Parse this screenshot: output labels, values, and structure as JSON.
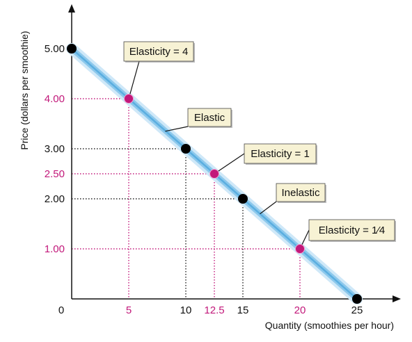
{
  "chart_data": {
    "type": "line",
    "xlabel": "Quantity (smoothies per hour)",
    "ylabel": "Price (dollars per smoothie)",
    "xlim": [
      0,
      25
    ],
    "ylim": [
      0,
      5
    ],
    "grid": false,
    "origin_label": "0",
    "x_ticks": [
      {
        "value": 5,
        "label": "5",
        "highlight": true
      },
      {
        "value": 10,
        "label": "10",
        "highlight": false
      },
      {
        "value": 12.5,
        "label": "12.5",
        "highlight": true
      },
      {
        "value": 15,
        "label": "15",
        "highlight": false
      },
      {
        "value": 20,
        "label": "20",
        "highlight": true
      },
      {
        "value": 25,
        "label": "25",
        "highlight": false
      }
    ],
    "y_ticks": [
      {
        "value": 1,
        "label": "1.00",
        "highlight": true
      },
      {
        "value": 2,
        "label": "2.00",
        "highlight": false
      },
      {
        "value": 2.5,
        "label": "2.50",
        "highlight": true
      },
      {
        "value": 3,
        "label": "3.00",
        "highlight": false
      },
      {
        "value": 4,
        "label": "4.00",
        "highlight": true
      },
      {
        "value": 5,
        "label": "5.00",
        "highlight": false
      }
    ],
    "series": [
      {
        "x": [
          0,
          25
        ],
        "y": [
          5,
          0
        ],
        "color": "#8cc8ec"
      }
    ],
    "points": [
      {
        "x": 0,
        "y": 5,
        "color": "#000000"
      },
      {
        "x": 5,
        "y": 4,
        "color": "#c2187a"
      },
      {
        "x": 10,
        "y": 3,
        "color": "#000000"
      },
      {
        "x": 12.5,
        "y": 2.5,
        "color": "#c2187a"
      },
      {
        "x": 15,
        "y": 2,
        "color": "#000000"
      },
      {
        "x": 20,
        "y": 1,
        "color": "#c2187a"
      },
      {
        "x": 25,
        "y": 0,
        "color": "#000000"
      }
    ],
    "annotations": [
      {
        "text": "Elasticity = 4",
        "x": 5,
        "y": 4
      },
      {
        "text": "Elastic",
        "x": 8.2,
        "y": 3.35
      },
      {
        "text": "Elasticity = 1",
        "x": 12.5,
        "y": 2.5
      },
      {
        "text": "Inelastic",
        "x": 16.5,
        "y": 1.7
      },
      {
        "text": "Elasticity = 1⁄4",
        "x": 20,
        "y": 1
      }
    ],
    "colors": {
      "highlight": "#c2187a",
      "curve": "#8cc8ec",
      "callout_fill": "#f7f2d4",
      "axis": "#111111"
    }
  }
}
